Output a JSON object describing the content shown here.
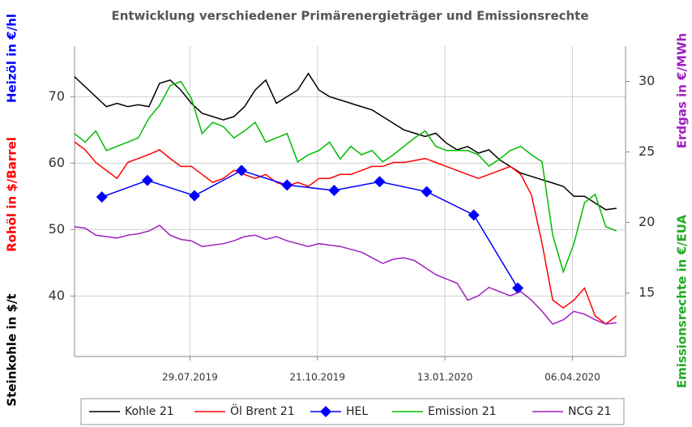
{
  "chart_data": {
    "type": "line",
    "title": "Entwicklung verschiedener Primärenergieträger und Emissionsrechte",
    "ylabels": [
      {
        "text": "Heizöl in €/hl",
        "color": "#0000ff"
      },
      {
        "text": "Rohöl in $/Barrel",
        "color": "#ff0000"
      },
      {
        "text": "Steinkohle in $/t",
        "color": "#000000"
      }
    ],
    "y2labels": [
      {
        "text": "Erdgas in €/MWh",
        "color": "#a020c0"
      },
      {
        "text": "Emissionsrechte in €/EUA",
        "color": "#22aa22"
      }
    ],
    "grid": true,
    "legend": "bottom",
    "xlim": [
      "2019-05-14",
      "2020-05-11"
    ],
    "xticks": [
      {
        "value": "2019-07-29",
        "label": "29.07.2019"
      },
      {
        "value": "2019-10-21",
        "label": "21.10.2019"
      },
      {
        "value": "2020-01-13",
        "label": "13.01.2020"
      },
      {
        "value": "2020-04-06",
        "label": "06.04.2020"
      }
    ],
    "ylim": [
      30.9,
      77.6
    ],
    "yticks": [
      40,
      50,
      60,
      70
    ],
    "y2lim": [
      10.5,
      32.5
    ],
    "y2ticks": [
      15,
      20,
      25,
      30
    ],
    "x": [
      "2019-05-14",
      "2019-05-21",
      "2019-05-28",
      "2019-06-04",
      "2019-06-11",
      "2019-06-18",
      "2019-06-25",
      "2019-07-02",
      "2019-07-09",
      "2019-07-16",
      "2019-07-23",
      "2019-07-30",
      "2019-08-06",
      "2019-08-13",
      "2019-08-20",
      "2019-08-27",
      "2019-09-03",
      "2019-09-10",
      "2019-09-17",
      "2019-09-24",
      "2019-10-01",
      "2019-10-08",
      "2019-10-15",
      "2019-10-22",
      "2019-10-29",
      "2019-11-05",
      "2019-11-12",
      "2019-11-19",
      "2019-11-26",
      "2019-12-03",
      "2019-12-10",
      "2019-12-17",
      "2019-12-24",
      "2019-12-31",
      "2020-01-07",
      "2020-01-14",
      "2020-01-21",
      "2020-01-28",
      "2020-02-04",
      "2020-02-11",
      "2020-02-18",
      "2020-02-25",
      "2020-03-03",
      "2020-03-10",
      "2020-03-17",
      "2020-03-24",
      "2020-03-31",
      "2020-04-07",
      "2020-04-14",
      "2020-04-21",
      "2020-04-28",
      "2020-05-05"
    ],
    "series": [
      {
        "name": "Kohle 21",
        "color": "#000000",
        "axis": "y",
        "values": [
          73,
          71.5,
          70,
          68.5,
          69,
          68.5,
          68.8,
          68.5,
          72,
          72.5,
          71,
          69,
          67.5,
          67,
          66.5,
          67,
          68.5,
          71,
          72.5,
          69,
          70,
          71,
          73.5,
          71,
          70,
          69.5,
          69,
          68.5,
          68,
          67,
          66,
          65,
          64.5,
          64,
          64.5,
          63,
          62,
          62.5,
          61.5,
          62,
          60.5,
          59.5,
          58.5,
          58,
          57.5,
          57,
          56.5,
          55,
          55,
          54,
          53,
          53.2
        ]
      },
      {
        "name": "Öl Brent 21",
        "color": "#ff0000",
        "axis": "y",
        "values": [
          63.2,
          62,
          60.1,
          58.9,
          57.7,
          60.1,
          60.7,
          61.3,
          62,
          60.7,
          59.5,
          59.5,
          58.3,
          57.1,
          57.7,
          58.9,
          58.3,
          57.7,
          58.3,
          57.1,
          56.5,
          57.1,
          56.5,
          57.7,
          57.7,
          58.3,
          58.3,
          58.9,
          59.5,
          59.5,
          60.1,
          60.1,
          60.4,
          60.7,
          60.1,
          59.5,
          58.9,
          58.3,
          57.7,
          58.3,
          58.9,
          59.5,
          58.3,
          55.2,
          47.9,
          39.4,
          38.2,
          39.4,
          41.2,
          37,
          35.8,
          37
        ]
      },
      {
        "name": "HEL",
        "color": "#0000ff",
        "axis": "y",
        "marker": "diamond",
        "x": [
          "2019-06-01",
          "2019-07-01",
          "2019-08-01",
          "2019-09-01",
          "2019-10-01",
          "2019-11-01",
          "2019-12-01",
          "2020-01-01",
          "2020-02-01",
          "2020-03-01"
        ],
        "values": [
          54.9,
          57.4,
          55.1,
          58.9,
          56.7,
          55.9,
          57.2,
          55.7,
          52.2,
          41.2
        ]
      },
      {
        "name": "Emission 21",
        "color": "#00bb00",
        "axis": "y2",
        "values": [
          26.3,
          25.7,
          26.5,
          25.1,
          25.4,
          25.7,
          26,
          27.4,
          28.3,
          29.7,
          30,
          28.8,
          26.3,
          27.1,
          26.8,
          26,
          26.5,
          27.1,
          25.7,
          26,
          26.3,
          24.3,
          24.8,
          25.1,
          25.7,
          24.5,
          25.4,
          24.8,
          25.1,
          24.3,
          24.8,
          25.4,
          26,
          26.5,
          25.4,
          25.1,
          25.1,
          25.1,
          24.8,
          24,
          24.5,
          25.1,
          25.4,
          24.8,
          24.3,
          19.1,
          16.5,
          18.5,
          21.4,
          22,
          19.7,
          19.4
        ]
      },
      {
        "name": "NCG 21",
        "color": "#a020c0",
        "axis": "y2",
        "values": [
          19.7,
          19.6,
          19.1,
          19,
          18.9,
          19.1,
          19.2,
          19.4,
          19.8,
          19.1,
          18.8,
          18.7,
          18.3,
          18.4,
          18.5,
          18.7,
          19,
          19.1,
          18.8,
          19,
          18.7,
          18.5,
          18.3,
          18.5,
          18.4,
          18.3,
          18.1,
          17.9,
          17.5,
          17.1,
          17.4,
          17.5,
          17.3,
          16.8,
          16.3,
          16,
          15.7,
          14.5,
          14.8,
          15.4,
          15.1,
          14.8,
          15.1,
          14.5,
          13.7,
          12.8,
          13.1,
          13.7,
          13.5,
          13.1,
          12.8,
          12.9
        ]
      }
    ]
  }
}
